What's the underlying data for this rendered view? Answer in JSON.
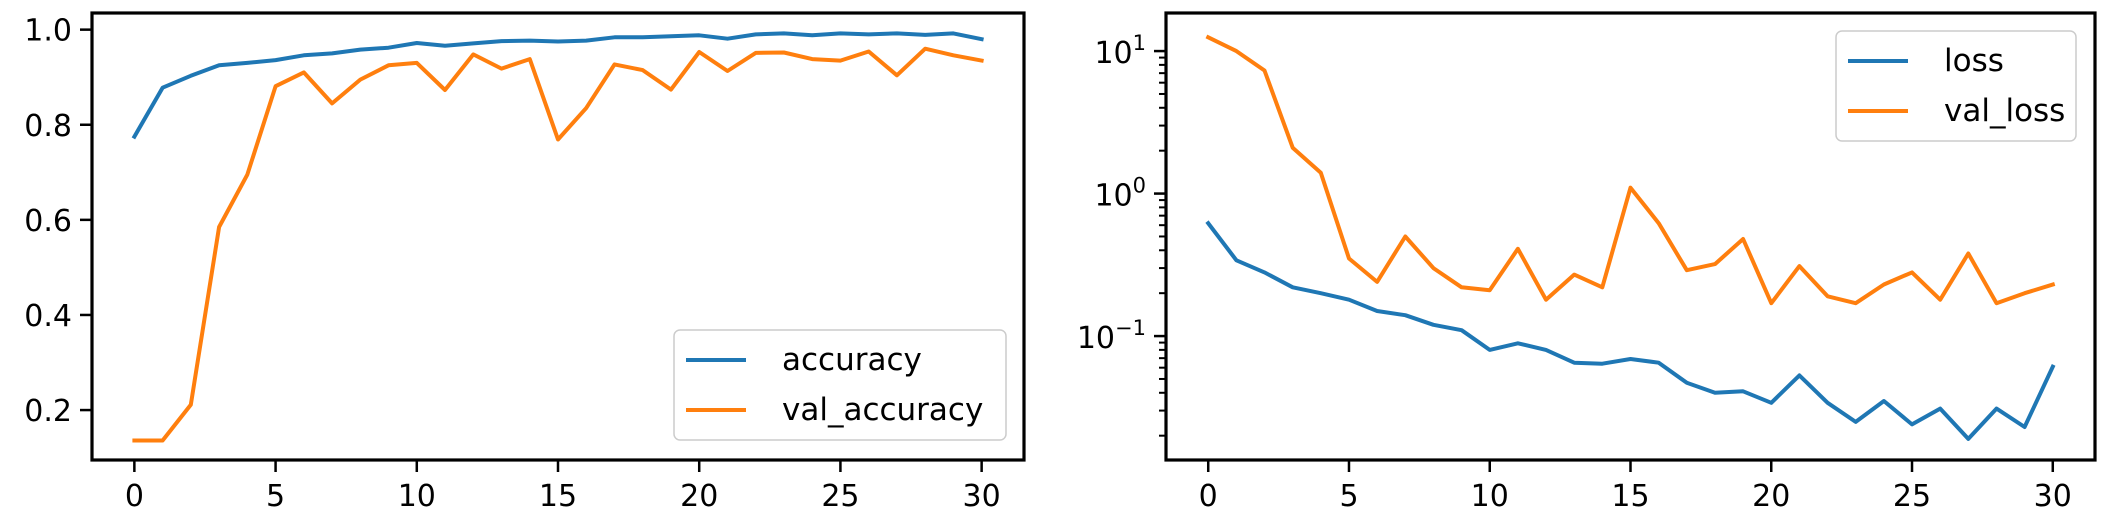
{
  "chart_data": [
    {
      "type": "line",
      "title": "",
      "xlabel": "",
      "ylabel": "",
      "x": [
        0,
        1,
        2,
        3,
        4,
        5,
        6,
        7,
        8,
        9,
        10,
        11,
        12,
        13,
        14,
        15,
        16,
        17,
        18,
        19,
        20,
        21,
        22,
        23,
        24,
        25,
        26,
        27,
        28,
        29,
        30
      ],
      "xlim": [
        -1.5,
        31.5
      ],
      "ylim": [
        0.095,
        1.035
      ],
      "yscale": "linear",
      "x_ticks": [
        0,
        5,
        10,
        15,
        20,
        25,
        30
      ],
      "x_tick_labels": [
        "0",
        "5",
        "10",
        "15",
        "20",
        "25",
        "30"
      ],
      "y_ticks": [
        0.2,
        0.4,
        0.6,
        0.8,
        1.0
      ],
      "y_tick_labels": [
        "0.2",
        "0.4",
        "0.6",
        "0.8",
        "1.0"
      ],
      "grid": false,
      "legend_position": "lower-right",
      "series": [
        {
          "name": "accuracy",
          "color": "#1f77b4",
          "values": [
            0.775,
            0.878,
            0.903,
            0.925,
            0.93,
            0.936,
            0.946,
            0.95,
            0.958,
            0.962,
            0.972,
            0.966,
            0.971,
            0.976,
            0.977,
            0.975,
            0.977,
            0.984,
            0.984,
            0.986,
            0.988,
            0.981,
            0.99,
            0.992,
            0.988,
            0.992,
            0.99,
            0.992,
            0.989,
            0.992,
            0.98
          ]
        },
        {
          "name": "val_accuracy",
          "color": "#ff7f0e",
          "values": [
            0.136,
            0.136,
            0.211,
            0.585,
            0.695,
            0.881,
            0.91,
            0.845,
            0.895,
            0.925,
            0.93,
            0.873,
            0.948,
            0.918,
            0.938,
            0.769,
            0.835,
            0.927,
            0.915,
            0.874,
            0.953,
            0.913,
            0.951,
            0.952,
            0.938,
            0.935,
            0.954,
            0.904,
            0.96,
            0.946,
            0.935
          ]
        }
      ]
    },
    {
      "type": "line",
      "title": "",
      "xlabel": "",
      "ylabel": "",
      "x": [
        0,
        1,
        2,
        3,
        4,
        5,
        6,
        7,
        8,
        9,
        10,
        11,
        12,
        13,
        14,
        15,
        16,
        17,
        18,
        19,
        20,
        21,
        22,
        23,
        24,
        25,
        26,
        27,
        28,
        29,
        30
      ],
      "xlim": [
        -1.5,
        31.5
      ],
      "ylim": [
        0.0135,
        18.5
      ],
      "yscale": "log",
      "x_ticks": [
        0,
        5,
        10,
        15,
        20,
        25,
        30
      ],
      "x_tick_labels": [
        "0",
        "5",
        "10",
        "15",
        "20",
        "25",
        "30"
      ],
      "y_ticks": [
        0.1,
        1,
        10
      ],
      "y_tick_labels": [
        {
          "base": "10",
          "exponent": "−1"
        },
        {
          "base": "10",
          "exponent": "0"
        },
        {
          "base": "10",
          "exponent": "1"
        }
      ],
      "grid": false,
      "legend_position": "upper-right",
      "series": [
        {
          "name": "loss",
          "color": "#1f77b4",
          "values": [
            0.62,
            0.34,
            0.28,
            0.22,
            0.2,
            0.18,
            0.15,
            0.14,
            0.12,
            0.11,
            0.08,
            0.089,
            0.08,
            0.065,
            0.064,
            0.069,
            0.065,
            0.047,
            0.04,
            0.041,
            0.034,
            0.053,
            0.034,
            0.025,
            0.035,
            0.024,
            0.031,
            0.019,
            0.031,
            0.023,
            0.061
          ]
        },
        {
          "name": "val_loss",
          "color": "#ff7f0e",
          "values": [
            12.5,
            10.0,
            7.3,
            2.1,
            1.4,
            0.35,
            0.24,
            0.5,
            0.3,
            0.22,
            0.21,
            0.41,
            0.18,
            0.27,
            0.22,
            1.1,
            0.62,
            0.29,
            0.32,
            0.48,
            0.17,
            0.31,
            0.19,
            0.17,
            0.23,
            0.28,
            0.18,
            0.38,
            0.17,
            0.2,
            0.23
          ]
        }
      ]
    }
  ]
}
